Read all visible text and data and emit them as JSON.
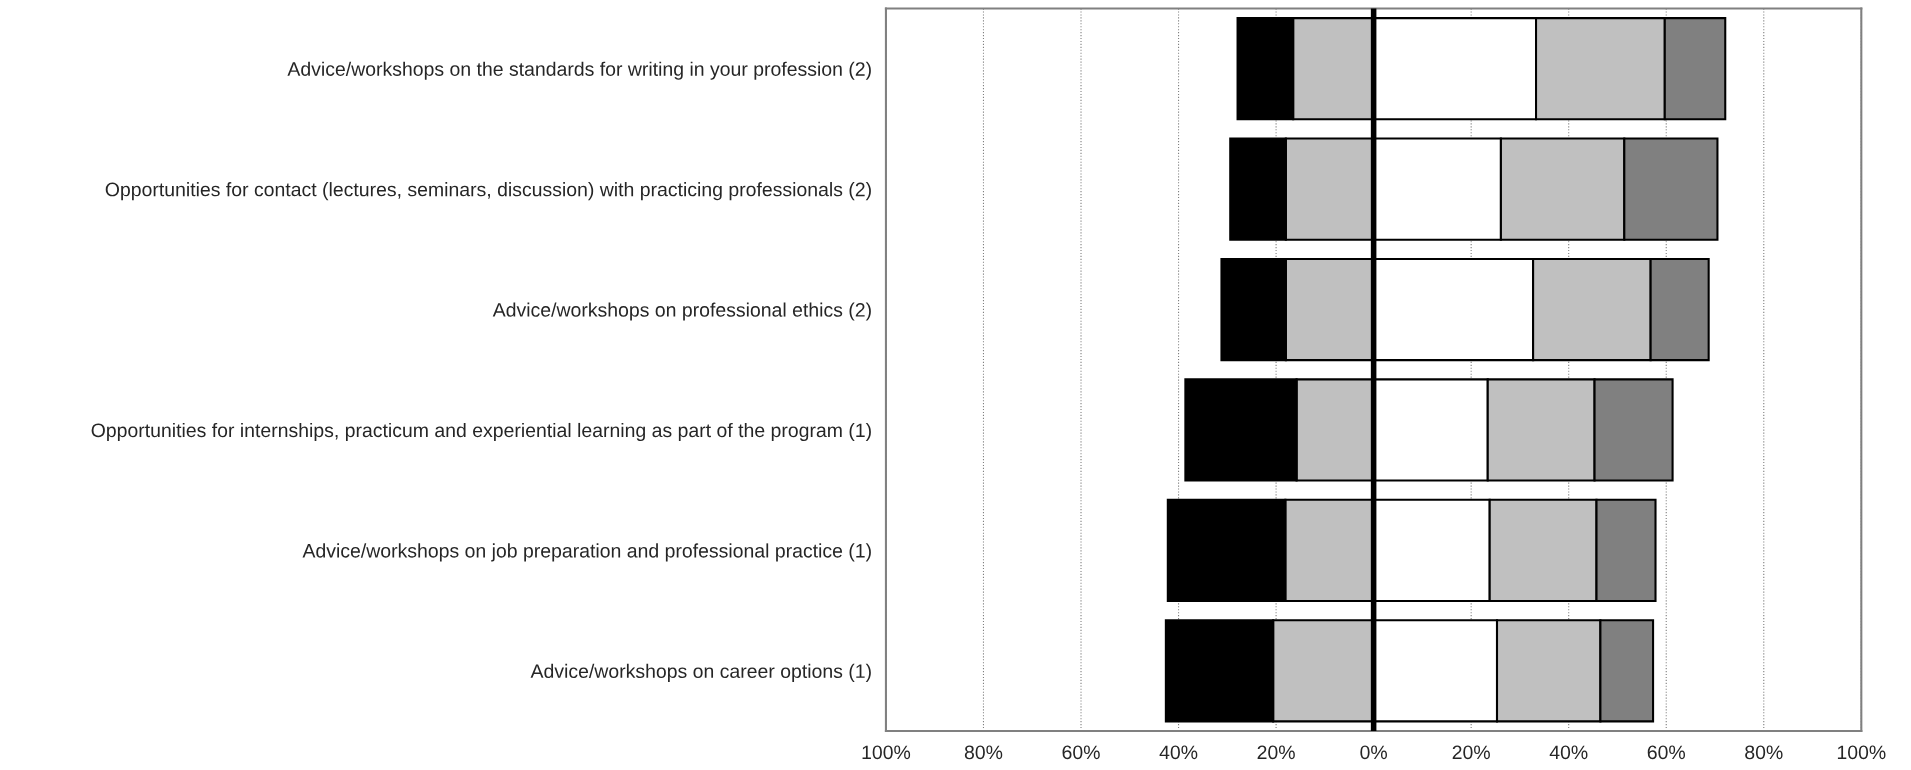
{
  "chart_data": {
    "type": "bar",
    "orientation": "horizontal",
    "stacked": true,
    "categories": [
      "Advice/workshops on the standards for writing in your profession (2)",
      "Opportunities for contact (lectures, seminars, discussion) with practicing professionals (2)",
      "Advice/workshops on professional ethics (2)",
      "Opportunities for internships, practicum and experiential learning as part of the program (1)",
      "Advice/workshops on job preparation and professional practice (1)",
      "Advice/workshops on career options (1)"
    ],
    "series": [
      {
        "color": "#c0c0c0",
        "values": [
          -16.5,
          -18.0,
          -18.0,
          -15.8,
          -18.1,
          -20.6
        ]
      },
      {
        "color": "#000000",
        "values": [
          -11.4,
          -11.4,
          -13.2,
          -22.8,
          -24.1,
          -22.0
        ]
      },
      {
        "color": "#ffffff",
        "values": [
          33.3,
          26.1,
          32.7,
          23.4,
          23.8,
          25.3
        ]
      },
      {
        "color": "#c0c0c0",
        "values": [
          26.4,
          25.3,
          24.1,
          21.9,
          21.9,
          21.2
        ]
      },
      {
        "color": "#808080",
        "values": [
          12.4,
          19.1,
          11.9,
          16.0,
          12.1,
          10.8
        ]
      }
    ],
    "xlim": [
      -100,
      100
    ],
    "xticks": [
      {
        "value": -100,
        "label": "100%"
      },
      {
        "value": -80,
        "label": "80%"
      },
      {
        "value": -60,
        "label": "60%"
      },
      {
        "value": -40,
        "label": "40%"
      },
      {
        "value": -20,
        "label": "20%"
      },
      {
        "value": 0,
        "label": "0%"
      },
      {
        "value": 20,
        "label": "20%"
      },
      {
        "value": 40,
        "label": "40%"
      },
      {
        "value": 60,
        "label": "60%"
      },
      {
        "value": 80,
        "label": "80%"
      },
      {
        "value": 100,
        "label": "100%"
      }
    ],
    "grid": "x",
    "ref_lines": [
      {
        "axis": "x",
        "value": 0,
        "color": "#000000"
      }
    ]
  }
}
